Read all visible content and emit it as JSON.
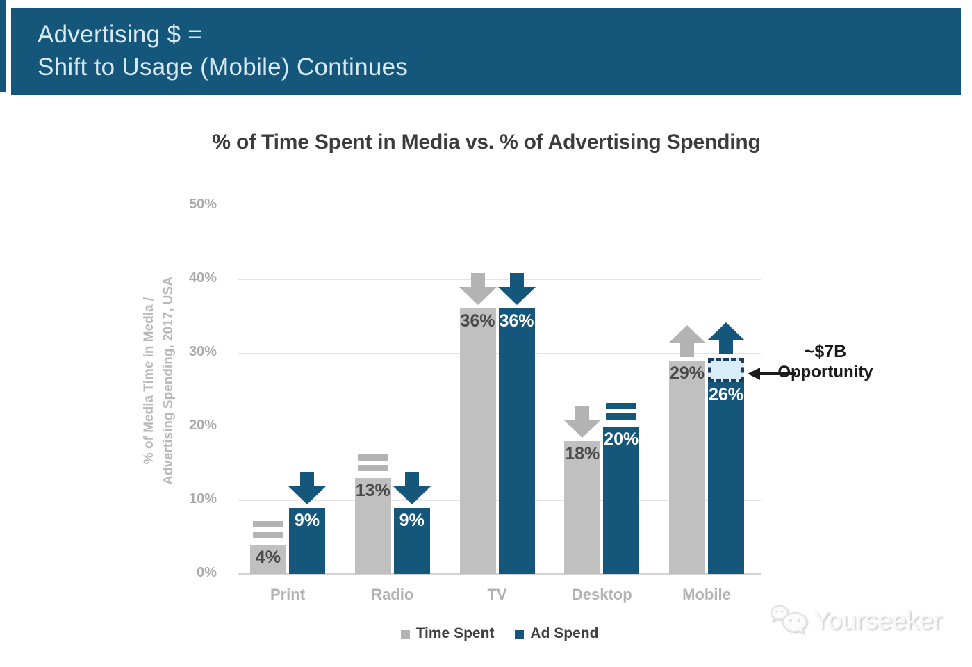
{
  "banner": {
    "line1": "Advertising $ =",
    "line2": "Shift to Usage (Mobile) Continues",
    "bg_color": "#15567b"
  },
  "chart_data": {
    "type": "bar",
    "title": "% of Time Spent in Media vs. % of Advertising Spending",
    "ylabel_lines": [
      "% of Media Time in Media /",
      "Advertising Spending, 2017, USA"
    ],
    "categories": [
      "Print",
      "Radio",
      "TV",
      "Desktop",
      "Mobile"
    ],
    "series": [
      {
        "name": "Time Spent",
        "color": "#c0c0c0",
        "trend_color": "#b3b3b3",
        "label_color": "#4a4a4a",
        "values": [
          4,
          13,
          36,
          18,
          29
        ],
        "value_labels": [
          "4%",
          "13%",
          "36%",
          "18%",
          "29%"
        ],
        "trends": [
          "flat",
          "flat",
          "down",
          "down",
          "up"
        ]
      },
      {
        "name": "Ad Spend",
        "color": "#15567b",
        "trend_color": "#15567b",
        "label_color": "#ffffff",
        "values": [
          9,
          9,
          36,
          20,
          26
        ],
        "value_labels": [
          "9%",
          "9%",
          "36%",
          "20%",
          "26%"
        ],
        "trends": [
          "down",
          "down",
          "down",
          "flat",
          "up"
        ]
      }
    ],
    "yticks": [
      {
        "value": 0,
        "label": "0%"
      },
      {
        "value": 10,
        "label": "10%"
      },
      {
        "value": 20,
        "label": "20%"
      },
      {
        "value": 30,
        "label": "30%"
      },
      {
        "value": 40,
        "label": "40%"
      },
      {
        "value": 50,
        "label": "50%"
      }
    ],
    "ylim": [
      0,
      50
    ],
    "grid": true,
    "legend_position": "bottom",
    "annotation": {
      "line1": "~$7B",
      "line2": "Opportunity",
      "target_category": "Mobile",
      "target_series": "Ad Spend",
      "box_from_pct": 26,
      "box_to_pct": 29.3,
      "box_fill": "#d9edf8",
      "box_border": "#1c3e5e"
    }
  },
  "legend": [
    {
      "label": "Time Spent",
      "color": "#b3b3b3"
    },
    {
      "label": "Ad Spend",
      "color": "#15567b"
    }
  ],
  "watermark": {
    "text": "Yourseeker"
  }
}
